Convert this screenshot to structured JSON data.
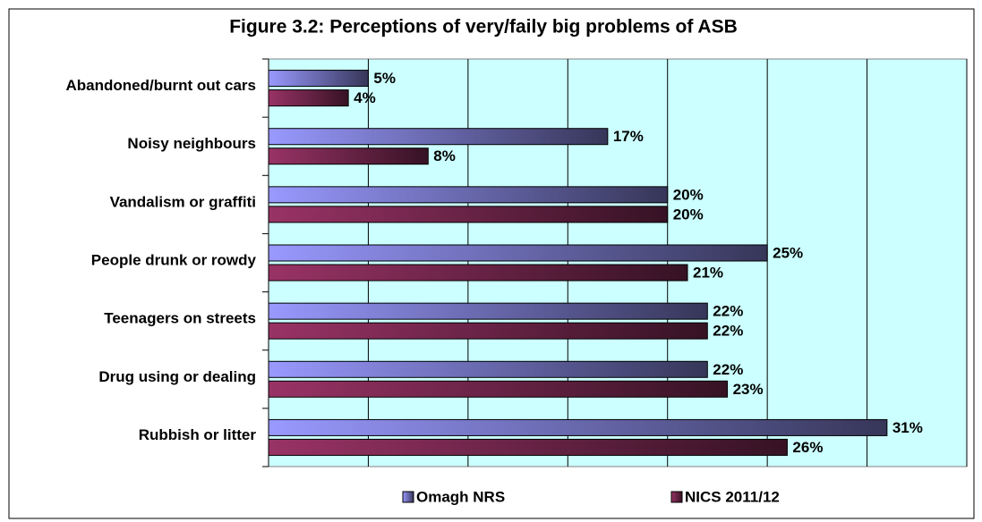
{
  "chart_data": {
    "type": "hbar",
    "title": "Figure 3.2: Perceptions of very/faily big problems of ASB",
    "categories": [
      "Abandoned/burnt out cars",
      "Noisy neighbours",
      "Vandalism or graffiti",
      "People drunk or rowdy",
      "Teenagers on streets",
      "Drug using or dealing",
      "Rubbish or litter"
    ],
    "series": [
      {
        "name": "Omagh NRS",
        "color": "#9999ff",
        "values": [
          5,
          17,
          20,
          25,
          22,
          22,
          31
        ],
        "value_labels": [
          "5%",
          "17%",
          "20%",
          "25%",
          "22%",
          "22%",
          "31%"
        ]
      },
      {
        "name": "NICS 2011/12",
        "color": "#993366",
        "values": [
          4,
          8,
          20,
          21,
          22,
          23,
          26
        ],
        "value_labels": [
          "4%",
          "8%",
          "20%",
          "21%",
          "22%",
          "23%",
          "26%"
        ]
      }
    ],
    "xlim": [
      0,
      35
    ],
    "xticks": [
      0,
      5,
      10,
      15,
      20,
      25,
      30,
      35
    ],
    "grid": true,
    "legend": "bottom"
  }
}
